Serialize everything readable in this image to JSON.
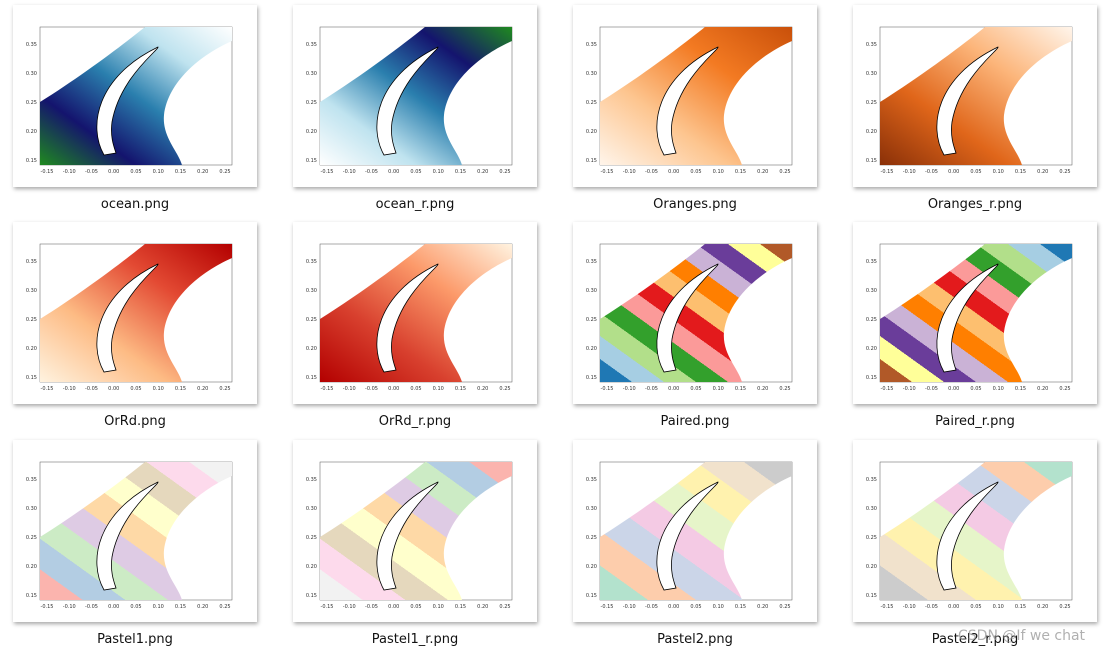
{
  "files": [
    {
      "name": "ocean.png"
    },
    {
      "name": "ocean_r.png"
    },
    {
      "name": "Oranges.png"
    },
    {
      "name": "Oranges_r.png"
    },
    {
      "name": "OrRd.png"
    },
    {
      "name": "OrRd_r.png"
    },
    {
      "name": "Paired.png"
    },
    {
      "name": "Paired_r.png"
    },
    {
      "name": "Pastel1.png"
    },
    {
      "name": "Pastel1_r.png"
    },
    {
      "name": "Pastel2.png"
    },
    {
      "name": "Pastel2_r.png"
    }
  ],
  "thumbnail": {
    "yticks": [
      "0.15",
      "0.20",
      "0.25",
      "0.30",
      "0.35"
    ],
    "xticks": [
      "-0.15",
      "-0.10",
      "-0.05",
      "0.00",
      "0.05",
      "0.10",
      "0.15",
      "0.20",
      "0.25"
    ]
  },
  "watermark": "CSDN @If we chat"
}
